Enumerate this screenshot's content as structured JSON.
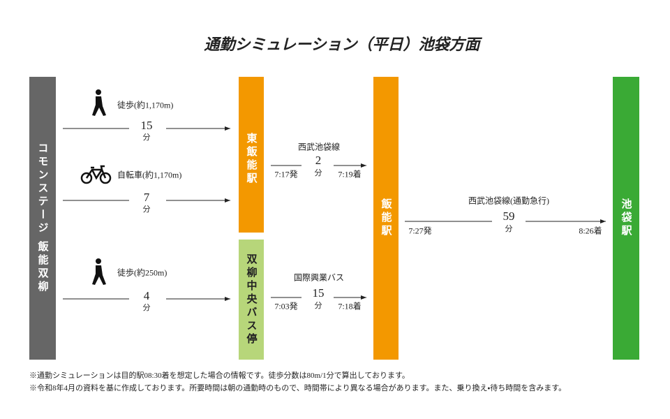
{
  "title": "通勤シミュレーション（平日）池袋方面",
  "stops": {
    "origin": "コモンステージ 飯能双柳",
    "higashi_hanno": "東飯能駅",
    "bus_stop": "双柳中央バス停",
    "hanno": "飯能駅",
    "ikebukuro": "池袋駅"
  },
  "routes": [
    {
      "mode": "徒歩(約1,170m)",
      "minutes": 15,
      "unit": "分"
    },
    {
      "mode": "自転車(約1,170m)",
      "minutes": 7,
      "unit": "分"
    },
    {
      "mode": "徒歩(約250m)",
      "minutes": 4,
      "unit": "分"
    }
  ],
  "trains": [
    {
      "line": "西武池袋線",
      "minutes": 2,
      "unit": "分",
      "depart": "7:17発",
      "arrive": "7:19着"
    },
    {
      "line": "国際興業バス",
      "minutes": 15,
      "unit": "分",
      "depart": "7:03発",
      "arrive": "7:18着"
    },
    {
      "line": "西武池袋線(通勤急行)",
      "minutes": 59,
      "unit": "分",
      "depart": "7:27発",
      "arrive": "8:26着"
    }
  ],
  "notes": [
    "※通勤シミュレーションは目的駅08:30着を想定した場合の情報です。徒歩分数は80m/1分で算出しております。",
    "※令和8年4月の資料を基に作成しております。所要時間は朝の通勤時のもので、時間帯により異なる場合があります。また、乗り換え・待ち時間を含みます。"
  ]
}
